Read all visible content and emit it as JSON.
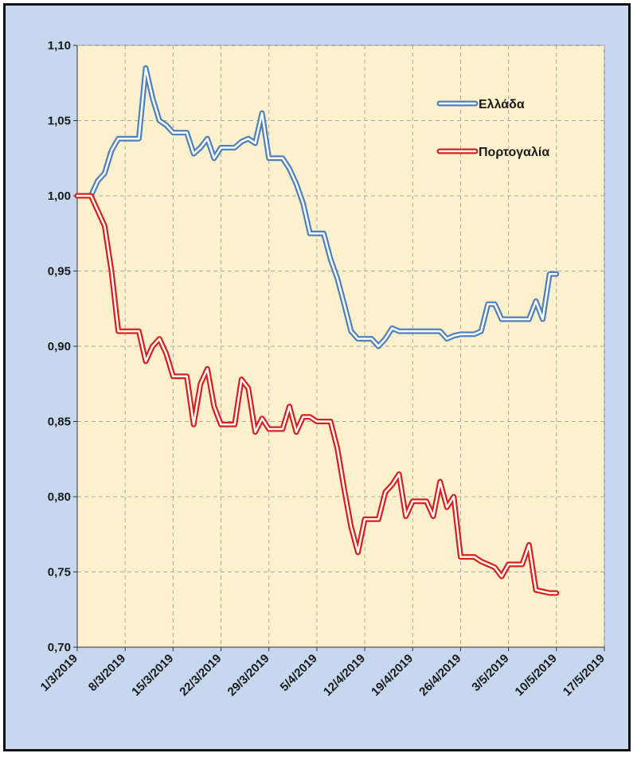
{
  "chart_data": {
    "type": "line",
    "title": "",
    "xlabel": "",
    "ylabel": "",
    "ylim": [
      0.7,
      1.1
    ],
    "yticks": [
      "0,70",
      "0,75",
      "0,80",
      "0,85",
      "0,90",
      "0,95",
      "1,00",
      "1,05",
      "1,10"
    ],
    "ytick_values": [
      0.7,
      0.75,
      0.8,
      0.85,
      0.9,
      0.95,
      1.0,
      1.05,
      1.1
    ],
    "xlim_days": [
      0,
      77
    ],
    "xticks": [
      "1/3/2019",
      "8/3/2019",
      "15/3/2019",
      "22/3/2019",
      "29/3/2019",
      "5/4/2019",
      "12/4/2019",
      "19/4/2019",
      "26/4/2019",
      "3/5/2019",
      "10/5/2019",
      "17/5/2019"
    ],
    "xtick_days": [
      0,
      7,
      14,
      21,
      28,
      35,
      42,
      49,
      56,
      63,
      70,
      77
    ],
    "grid": true,
    "legend_position": "top-right",
    "series": [
      {
        "name": "Ελλάδα",
        "color": "#4f81bd",
        "x": [
          0,
          2,
          3,
          4,
          5,
          6,
          7,
          8,
          9,
          10,
          11,
          12,
          13,
          14,
          15,
          16,
          17,
          18,
          19,
          20,
          21,
          22,
          23,
          24,
          25,
          26,
          27,
          28,
          29,
          30,
          31,
          32,
          33,
          34,
          35,
          36,
          37,
          38,
          39,
          40,
          41,
          42,
          43,
          44,
          45,
          46,
          47,
          48,
          49,
          50,
          51,
          52,
          53,
          54,
          55,
          56,
          57,
          58,
          59,
          60,
          61,
          62,
          63,
          64,
          65,
          66,
          67,
          68,
          69,
          70
        ],
        "values": [
          1.0,
          1.0,
          1.01,
          1.015,
          1.03,
          1.038,
          1.038,
          1.038,
          1.038,
          1.085,
          1.065,
          1.05,
          1.047,
          1.042,
          1.042,
          1.042,
          1.028,
          1.032,
          1.038,
          1.025,
          1.032,
          1.032,
          1.032,
          1.036,
          1.038,
          1.035,
          1.055,
          1.025,
          1.025,
          1.025,
          1.018,
          1.008,
          0.995,
          0.975,
          0.975,
          0.975,
          0.958,
          0.945,
          0.928,
          0.91,
          0.905,
          0.905,
          0.905,
          0.9,
          0.905,
          0.912,
          0.91,
          0.91,
          0.91,
          0.91,
          0.91,
          0.91,
          0.91,
          0.905,
          0.907,
          0.908,
          0.908,
          0.908,
          0.91,
          0.928,
          0.928,
          0.918,
          0.918,
          0.918,
          0.918,
          0.918,
          0.93,
          0.918,
          0.948,
          0.948
        ]
      },
      {
        "name": "Πορτογαλία",
        "color": "#d8211f",
        "x": [
          0,
          2,
          3,
          4,
          5,
          6,
          7,
          8,
          9,
          10,
          11,
          12,
          13,
          14,
          15,
          16,
          17,
          18,
          19,
          20,
          21,
          22,
          23,
          24,
          25,
          26,
          27,
          28,
          29,
          30,
          31,
          32,
          33,
          34,
          35,
          36,
          37,
          38,
          39,
          40,
          41,
          42,
          43,
          44,
          45,
          46,
          47,
          48,
          49,
          50,
          51,
          52,
          53,
          54,
          55,
          56,
          57,
          58,
          59,
          60,
          61,
          62,
          63,
          64,
          65,
          66,
          67,
          68,
          69,
          70
        ],
        "values": [
          1.0,
          1.0,
          0.99,
          0.98,
          0.95,
          0.91,
          0.91,
          0.91,
          0.91,
          0.89,
          0.9,
          0.905,
          0.895,
          0.88,
          0.88,
          0.88,
          0.848,
          0.875,
          0.885,
          0.86,
          0.848,
          0.848,
          0.848,
          0.878,
          0.872,
          0.843,
          0.852,
          0.845,
          0.845,
          0.845,
          0.86,
          0.843,
          0.853,
          0.853,
          0.85,
          0.85,
          0.85,
          0.832,
          0.805,
          0.78,
          0.763,
          0.785,
          0.785,
          0.785,
          0.803,
          0.808,
          0.815,
          0.787,
          0.797,
          0.797,
          0.797,
          0.787,
          0.81,
          0.793,
          0.8,
          0.76,
          0.76,
          0.76,
          0.757,
          0.755,
          0.753,
          0.747,
          0.755,
          0.755,
          0.755,
          0.768,
          0.738,
          0.737,
          0.736,
          0.736
        ]
      }
    ]
  }
}
